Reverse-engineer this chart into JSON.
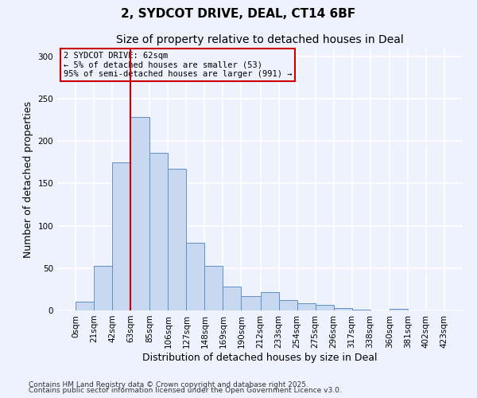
{
  "title1": "2, SYDCOT DRIVE, DEAL, CT14 6BF",
  "title2": "Size of property relative to detached houses in Deal",
  "xlabel": "Distribution of detached houses by size in Deal",
  "ylabel": "Number of detached properties",
  "bin_edges": [
    0,
    21,
    42,
    63,
    85,
    106,
    127,
    148,
    169,
    190,
    212,
    233,
    254,
    275,
    296,
    317,
    338,
    360,
    381,
    402,
    423
  ],
  "bar_heights": [
    10,
    53,
    175,
    228,
    186,
    167,
    80,
    53,
    28,
    17,
    22,
    12,
    8,
    7,
    3,
    1,
    0,
    2,
    0,
    0
  ],
  "bar_facecolor": "#c8d8f0",
  "bar_edgecolor": "#6090c8",
  "vline_x": 63,
  "vline_color": "#cc0000",
  "annotation_title": "2 SYDCOT DRIVE: 62sqm",
  "annotation_line2": "← 5% of detached houses are smaller (53)",
  "annotation_line3": "95% of semi-detached houses are larger (991) →",
  "annotation_box_edgecolor": "#cc0000",
  "ylim": [
    0,
    310
  ],
  "yticks": [
    0,
    50,
    100,
    150,
    200,
    250,
    300
  ],
  "xtick_labels": [
    "0sqm",
    "21sqm",
    "42sqm",
    "63sqm",
    "85sqm",
    "106sqm",
    "127sqm",
    "148sqm",
    "169sqm",
    "190sqm",
    "212sqm",
    "233sqm",
    "254sqm",
    "275sqm",
    "296sqm",
    "317sqm",
    "338sqm",
    "360sqm",
    "381sqm",
    "402sqm",
    "423sqm"
  ],
  "footer1": "Contains HM Land Registry data © Crown copyright and database right 2025.",
  "footer2": "Contains public sector information licensed under the Open Government Licence v3.0.",
  "bg_color": "#eef2fc",
  "grid_color": "#ffffff",
  "title_fontsize": 11,
  "subtitle_fontsize": 10,
  "axis_label_fontsize": 9,
  "tick_fontsize": 7.5,
  "annotation_fontsize": 7.5,
  "footer_fontsize": 6.5
}
